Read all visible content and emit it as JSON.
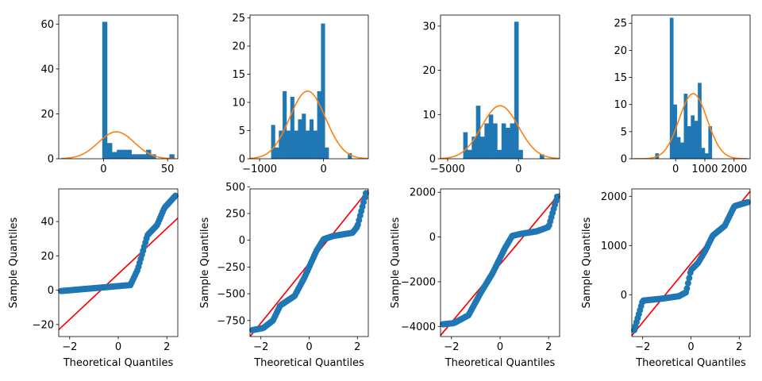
{
  "chart_data": [
    {
      "type": "bar",
      "overlay": "line",
      "xlabel": "",
      "ylabel": "",
      "xlim": [
        -35,
        58
      ],
      "ylim": [
        0,
        64
      ],
      "xticks": [
        0,
        50
      ],
      "yticks": [
        0,
        20,
        40,
        60
      ],
      "bins": [
        {
          "x0": -1,
          "x1": 2.8,
          "h": 61
        },
        {
          "x0": 2.8,
          "x1": 6.6,
          "h": 7
        },
        {
          "x0": 6.6,
          "x1": 10.4,
          "h": 3
        },
        {
          "x0": 10.4,
          "x1": 14.2,
          "h": 4
        },
        {
          "x0": 14.2,
          "x1": 18,
          "h": 4
        },
        {
          "x0": 18,
          "x1": 21.8,
          "h": 4
        },
        {
          "x0": 21.8,
          "x1": 25.6,
          "h": 2
        },
        {
          "x0": 25.6,
          "x1": 29.4,
          "h": 2
        },
        {
          "x0": 29.4,
          "x1": 33.2,
          "h": 2
        },
        {
          "x0": 33.2,
          "x1": 37,
          "h": 4
        },
        {
          "x0": 37,
          "x1": 40.8,
          "h": 2
        },
        {
          "x0": 51.4,
          "x1": 55.2,
          "h": 2
        }
      ],
      "curve": {
        "mean": 10,
        "sd": 14,
        "peak": 12,
        "from": -33,
        "to": 56
      },
      "colors": {
        "bar": "#1f77b4",
        "curve": "#ff7f0e"
      }
    },
    {
      "type": "bar",
      "overlay": "line",
      "xlabel": "",
      "ylabel": "",
      "xlim": [
        -1150,
        700
      ],
      "ylim": [
        0,
        25.5
      ],
      "xticks": [
        -1000,
        0
      ],
      "yticks": [
        0,
        5,
        10,
        15,
        20,
        25
      ],
      "bins": [
        {
          "x0": -820,
          "x1": -760,
          "h": 6
        },
        {
          "x0": -760,
          "x1": -700,
          "h": 2
        },
        {
          "x0": -700,
          "x1": -640,
          "h": 5
        },
        {
          "x0": -640,
          "x1": -580,
          "h": 12
        },
        {
          "x0": -580,
          "x1": -520,
          "h": 5
        },
        {
          "x0": -520,
          "x1": -460,
          "h": 11
        },
        {
          "x0": -460,
          "x1": -400,
          "h": 5
        },
        {
          "x0": -400,
          "x1": -340,
          "h": 7
        },
        {
          "x0": -340,
          "x1": -280,
          "h": 8
        },
        {
          "x0": -280,
          "x1": -220,
          "h": 5
        },
        {
          "x0": -220,
          "x1": -160,
          "h": 7
        },
        {
          "x0": -160,
          "x1": -100,
          "h": 5
        },
        {
          "x0": -100,
          "x1": -40,
          "h": 12
        },
        {
          "x0": -40,
          "x1": 20,
          "h": 24
        },
        {
          "x0": 20,
          "x1": 80,
          "h": 2
        },
        {
          "x0": 380,
          "x1": 440,
          "h": 1
        }
      ],
      "curve": {
        "mean": -250,
        "sd": 280,
        "peak": 12,
        "from": -1150,
        "to": 700
      },
      "colors": {
        "bar": "#1f77b4",
        "curve": "#ff7f0e"
      }
    },
    {
      "type": "bar",
      "overlay": "line",
      "xlabel": "",
      "ylabel": "",
      "xlim": [
        -5500,
        2900
      ],
      "ylim": [
        0,
        32.5
      ],
      "xticks": [
        -5000,
        0
      ],
      "yticks": [
        0,
        10,
        20,
        30
      ],
      "bins": [
        {
          "x0": -3900,
          "x1": -3600,
          "h": 6
        },
        {
          "x0": -3600,
          "x1": -3300,
          "h": 2
        },
        {
          "x0": -3300,
          "x1": -3000,
          "h": 5
        },
        {
          "x0": -3000,
          "x1": -2700,
          "h": 12
        },
        {
          "x0": -2700,
          "x1": -2400,
          "h": 5
        },
        {
          "x0": -2400,
          "x1": -2100,
          "h": 8
        },
        {
          "x0": -2100,
          "x1": -1800,
          "h": 10
        },
        {
          "x0": -1800,
          "x1": -1500,
          "h": 8
        },
        {
          "x0": -1500,
          "x1": -1200,
          "h": 2
        },
        {
          "x0": -1200,
          "x1": -900,
          "h": 8
        },
        {
          "x0": -900,
          "x1": -600,
          "h": 7
        },
        {
          "x0": -600,
          "x1": -300,
          "h": 8
        },
        {
          "x0": -300,
          "x1": 0,
          "h": 31
        },
        {
          "x0": 0,
          "x1": 300,
          "h": 2
        },
        {
          "x0": 1500,
          "x1": 1800,
          "h": 1
        }
      ],
      "curve": {
        "mean": -1300,
        "sd": 1300,
        "peak": 12,
        "from": -5500,
        "to": 2900
      },
      "colors": {
        "bar": "#1f77b4",
        "curve": "#ff7f0e"
      }
    },
    {
      "type": "bar",
      "overlay": "line",
      "xlabel": "",
      "ylabel": "",
      "xlim": [
        -1500,
        2550
      ],
      "ylim": [
        0,
        26.5
      ],
      "xticks": [
        0,
        1000,
        2000
      ],
      "yticks": [
        0,
        5,
        10,
        15,
        20,
        25
      ],
      "bins": [
        {
          "x0": -700,
          "x1": -580,
          "h": 1
        },
        {
          "x0": -200,
          "x1": -80,
          "h": 26
        },
        {
          "x0": -80,
          "x1": 40,
          "h": 10
        },
        {
          "x0": 40,
          "x1": 160,
          "h": 4
        },
        {
          "x0": 160,
          "x1": 280,
          "h": 3
        },
        {
          "x0": 280,
          "x1": 400,
          "h": 12
        },
        {
          "x0": 400,
          "x1": 520,
          "h": 6
        },
        {
          "x0": 520,
          "x1": 640,
          "h": 8
        },
        {
          "x0": 640,
          "x1": 760,
          "h": 7
        },
        {
          "x0": 760,
          "x1": 880,
          "h": 14
        },
        {
          "x0": 880,
          "x1": 1000,
          "h": 2
        },
        {
          "x0": 1000,
          "x1": 1120,
          "h": 1
        },
        {
          "x0": 1120,
          "x1": 1240,
          "h": 6
        }
      ],
      "curve": {
        "mean": 600,
        "sd": 480,
        "peak": 12,
        "from": -1450,
        "to": 2450
      },
      "colors": {
        "bar": "#1f77b4",
        "curve": "#ff7f0e"
      }
    },
    {
      "type": "scatter",
      "xlabel": "Theoretical Quantiles",
      "ylabel": "Sample Quantiles",
      "xlim": [
        -2.45,
        2.45
      ],
      "ylim": [
        -27,
        59
      ],
      "xticks": [
        -2,
        0,
        2
      ],
      "yticks": [
        -20,
        0,
        20,
        40
      ],
      "qq": {
        "anchors": [
          [
            -2.35,
            -0.5
          ],
          [
            0.5,
            3
          ],
          [
            0.8,
            12
          ],
          [
            1.0,
            22
          ],
          [
            1.2,
            32
          ],
          [
            1.6,
            38
          ],
          [
            1.9,
            48
          ],
          [
            2.35,
            55
          ]
        ],
        "n": 100
      },
      "reference_line": {
        "x": [
          -2.45,
          2.45
        ],
        "y": [
          -23,
          42
        ]
      },
      "colors": {
        "points": "#1f77b4",
        "line": "#ff0000"
      }
    },
    {
      "type": "scatter",
      "xlabel": "Theoretical Quantiles",
      "ylabel": "Sample Quantiles",
      "xlim": [
        -2.45,
        2.45
      ],
      "ylim": [
        -900,
        480
      ],
      "xticks": [
        -2,
        0,
        2
      ],
      "yticks": [
        -750,
        -500,
        -250,
        0,
        250,
        500
      ],
      "qq": {
        "anchors": [
          [
            -2.35,
            -840
          ],
          [
            -1.9,
            -820
          ],
          [
            -1.5,
            -750
          ],
          [
            -1.2,
            -610
          ],
          [
            -0.6,
            -520
          ],
          [
            -0.2,
            -350
          ],
          [
            0.3,
            -100
          ],
          [
            0.6,
            10
          ],
          [
            1.0,
            40
          ],
          [
            1.8,
            70
          ],
          [
            2.0,
            130
          ],
          [
            2.35,
            440
          ]
        ],
        "n": 100
      },
      "reference_line": {
        "x": [
          -2.45,
          2.45
        ],
        "y": [
          -900,
          470
        ]
      },
      "colors": {
        "points": "#1f77b4",
        "line": "#ff0000"
      }
    },
    {
      "type": "scatter",
      "xlabel": "Theoretical Quantiles",
      "ylabel": "Sample Quantiles",
      "xlim": [
        -2.45,
        2.45
      ],
      "ylim": [
        -4450,
        2150
      ],
      "xticks": [
        -2,
        0,
        2
      ],
      "yticks": [
        -4000,
        -2000,
        0,
        2000
      ],
      "qq": {
        "anchors": [
          [
            -2.35,
            -3900
          ],
          [
            -1.9,
            -3850
          ],
          [
            -1.3,
            -3500
          ],
          [
            -0.8,
            -2500
          ],
          [
            -0.3,
            -1600
          ],
          [
            0.2,
            -500
          ],
          [
            0.5,
            50
          ],
          [
            0.9,
            150
          ],
          [
            1.5,
            250
          ],
          [
            2.0,
            450
          ],
          [
            2.35,
            1800
          ]
        ],
        "n": 100
      },
      "reference_line": {
        "x": [
          -2.45,
          2.45
        ],
        "y": [
          -4400,
          1950
        ]
      },
      "colors": {
        "points": "#1f77b4",
        "line": "#ff0000"
      }
    },
    {
      "type": "scatter",
      "xlabel": "Theoretical Quantiles",
      "ylabel": "Sample Quantiles",
      "xlim": [
        -2.45,
        2.45
      ],
      "ylim": [
        -850,
        2150
      ],
      "xticks": [
        -2,
        0,
        2
      ],
      "yticks": [
        0,
        1000,
        2000
      ],
      "qq": {
        "anchors": [
          [
            -2.35,
            -720
          ],
          [
            -2.0,
            -120
          ],
          [
            -1.2,
            -80
          ],
          [
            -0.5,
            -30
          ],
          [
            -0.2,
            50
          ],
          [
            0.0,
            500
          ],
          [
            0.3,
            650
          ],
          [
            0.6,
            900
          ],
          [
            0.9,
            1200
          ],
          [
            1.4,
            1400
          ],
          [
            1.8,
            1800
          ],
          [
            2.35,
            1880
          ]
        ],
        "n": 100
      },
      "reference_line": {
        "x": [
          -2.45,
          2.45
        ],
        "y": [
          -830,
          2100
        ]
      },
      "colors": {
        "points": "#1f77b4",
        "line": "#ff0000"
      }
    }
  ]
}
